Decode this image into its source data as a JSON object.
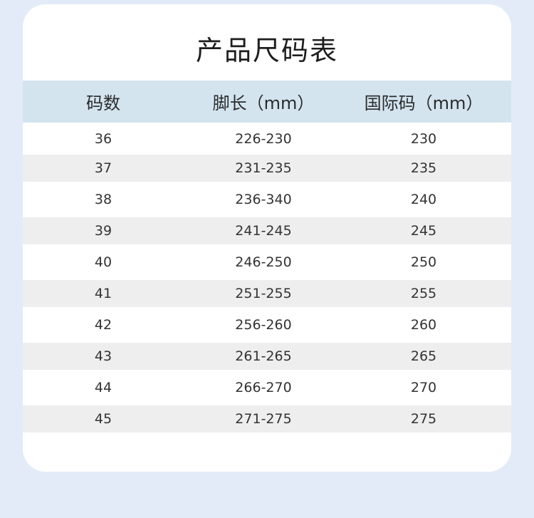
{
  "title": "产品尺码表",
  "colors": {
    "background": "#e3ebf8",
    "header": "#d3e4ef",
    "stripe": "#eeeeee",
    "card": "#ffffff"
  },
  "table": {
    "headers": [
      "码数",
      "脚长（mm）",
      "国际码（mm）"
    ],
    "rows": [
      [
        "36",
        "226-230",
        "230"
      ],
      [
        "37",
        "231-235",
        "235"
      ],
      [
        "38",
        "236-340",
        "240"
      ],
      [
        "39",
        "241-245",
        "245"
      ],
      [
        "40",
        "246-250",
        "250"
      ],
      [
        "41",
        "251-255",
        "255"
      ],
      [
        "42",
        "256-260",
        "260"
      ],
      [
        "43",
        "261-265",
        "265"
      ],
      [
        "44",
        "266-270",
        "270"
      ],
      [
        "45",
        "271-275",
        "275"
      ]
    ]
  }
}
